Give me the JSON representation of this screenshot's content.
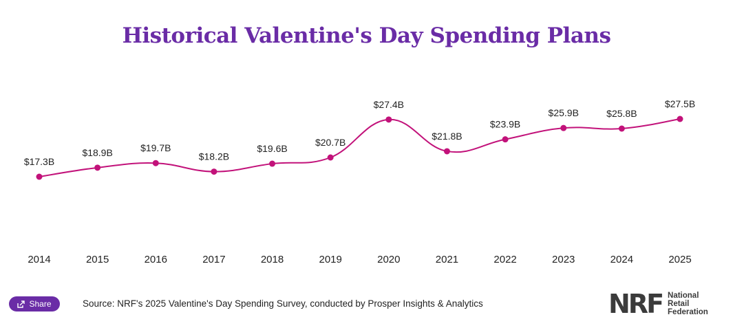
{
  "title": "Historical Valentine's Day Spending Plans",
  "share_label": "Share",
  "source": "Source: NRF's 2025 Valentine's Day Spending Survey, conducted by Prosper Insights & Analytics",
  "logo": {
    "mark": "NRF",
    "lines": [
      "National",
      "Retail",
      "Federation"
    ]
  },
  "colors": {
    "line": "#c2127a",
    "title": "#6a2ca6",
    "button": "#6a2ca6"
  },
  "chart_data": {
    "type": "line",
    "title": "Historical Valentine's Day Spending Plans",
    "x": [
      "2014",
      "2015",
      "2016",
      "2017",
      "2018",
      "2019",
      "2020",
      "2021",
      "2022",
      "2023",
      "2024",
      "2025"
    ],
    "series": [
      {
        "values": [
          17.3,
          18.9,
          19.7,
          18.2,
          19.6,
          20.7,
          27.4,
          21.8,
          23.9,
          25.9,
          25.8,
          27.5
        ],
        "labels": [
          "$17.3B",
          "$18.9B",
          "$19.7B",
          "$18.2B",
          "$19.6B",
          "$20.7B",
          "$27.4B",
          "$21.8B",
          "$23.9B",
          "$25.9B",
          "$25.8B",
          "$27.5B"
        ]
      }
    ],
    "xlabel": "",
    "ylabel": "",
    "grid": false,
    "legend": "none"
  }
}
